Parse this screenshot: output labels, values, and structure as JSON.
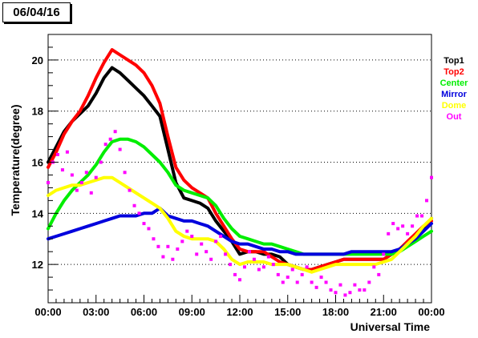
{
  "title": "06/04/16",
  "chart_data": {
    "type": "line",
    "xlabel": "Universal Time",
    "ylabel": "Temperature(degree)",
    "xlim": [
      0,
      24
    ],
    "ylim": [
      10.5,
      21
    ],
    "x_ticks": [
      "00:00",
      "03:00",
      "06:00",
      "09:00",
      "12:00",
      "15:00",
      "18:00",
      "21:00",
      "00:00"
    ],
    "y_ticks": [
      12,
      14,
      16,
      18,
      20
    ],
    "grid": "horizontal dotted",
    "legend_position": "right",
    "series": [
      {
        "name": "Top1",
        "color": "#000000",
        "x": [
          0,
          0.5,
          1,
          1.5,
          2,
          2.5,
          3,
          3.5,
          4,
          4.5,
          5,
          5.5,
          6,
          6.5,
          7,
          7.5,
          8,
          8.5,
          9,
          9.5,
          10,
          10.5,
          11,
          11.5,
          12,
          12.5,
          13,
          13.5,
          14,
          14.5,
          15,
          15.5,
          16,
          16.5,
          17,
          17.5,
          18,
          18.5,
          19,
          19.5,
          20,
          20.5,
          21,
          21.5,
          22,
          22.5,
          23,
          23.5,
          24
        ],
        "y": [
          16.0,
          16.6,
          17.2,
          17.6,
          17.9,
          18.2,
          18.7,
          19.3,
          19.7,
          19.5,
          19.2,
          18.9,
          18.6,
          18.2,
          17.8,
          16.5,
          15.2,
          14.6,
          14.5,
          14.4,
          14.2,
          13.7,
          13.3,
          12.9,
          12.4,
          12.5,
          12.5,
          12.4,
          12.4,
          12.3,
          12.0,
          11.9,
          11.8,
          11.8,
          11.9,
          12.0,
          12.1,
          12.2,
          12.2,
          12.2,
          12.2,
          12.2,
          12.2,
          12.4,
          12.6,
          12.8,
          13.1,
          13.4,
          13.8
        ]
      },
      {
        "name": "Top2",
        "color": "#ff0000",
        "x": [
          0,
          0.5,
          1,
          1.5,
          2,
          2.5,
          3,
          3.5,
          4,
          4.5,
          5,
          5.5,
          6,
          6.5,
          7,
          7.5,
          8,
          8.5,
          9,
          9.5,
          10,
          10.5,
          11,
          11.5,
          12,
          12.5,
          13,
          13.5,
          14,
          14.5,
          15,
          15.5,
          16,
          16.5,
          17,
          17.5,
          18,
          18.5,
          19,
          19.5,
          20,
          20.5,
          21,
          21.5,
          22,
          22.5,
          23,
          23.5,
          24
        ],
        "y": [
          15.8,
          16.4,
          17.1,
          17.6,
          18.0,
          18.6,
          19.3,
          19.9,
          20.4,
          20.2,
          20.0,
          19.8,
          19.5,
          19.0,
          18.3,
          17.0,
          15.8,
          15.3,
          15.0,
          14.8,
          14.6,
          14.0,
          13.5,
          13.0,
          12.6,
          12.5,
          12.5,
          12.5,
          12.3,
          12.1,
          12.0,
          11.9,
          11.8,
          11.8,
          11.9,
          12.0,
          12.1,
          12.2,
          12.2,
          12.2,
          12.2,
          12.2,
          12.2,
          12.4,
          12.6,
          12.9,
          13.2,
          13.5,
          13.7
        ]
      },
      {
        "name": "Center",
        "color": "#00ee00",
        "x": [
          0,
          0.5,
          1,
          1.5,
          2,
          2.5,
          3,
          3.5,
          4,
          4.5,
          5,
          5.5,
          6,
          6.5,
          7,
          7.5,
          8,
          8.5,
          9,
          9.5,
          10,
          10.5,
          11,
          11.5,
          12,
          12.5,
          13,
          13.5,
          14,
          14.5,
          15,
          15.5,
          16,
          16.5,
          17,
          17.5,
          18,
          18.5,
          19,
          19.5,
          20,
          20.5,
          21,
          21.5,
          22,
          22.5,
          23,
          23.5,
          24
        ],
        "y": [
          13.4,
          14.0,
          14.5,
          14.9,
          15.2,
          15.5,
          15.9,
          16.4,
          16.8,
          16.9,
          16.9,
          16.8,
          16.6,
          16.3,
          16.0,
          15.6,
          15.1,
          14.9,
          14.8,
          14.7,
          14.6,
          14.3,
          13.8,
          13.4,
          13.1,
          13.0,
          12.9,
          12.8,
          12.8,
          12.7,
          12.6,
          12.5,
          12.4,
          12.4,
          12.4,
          12.4,
          12.4,
          12.4,
          12.4,
          12.4,
          12.4,
          12.4,
          12.4,
          12.4,
          12.5,
          12.7,
          12.9,
          13.1,
          13.3
        ]
      },
      {
        "name": "Mirror",
        "color": "#0000dd",
        "x": [
          0,
          0.5,
          1,
          1.5,
          2,
          2.5,
          3,
          3.5,
          4,
          4.5,
          5,
          5.5,
          6,
          6.5,
          7,
          7.5,
          8,
          8.5,
          9,
          9.5,
          10,
          10.5,
          11,
          11.5,
          12,
          12.5,
          13,
          13.5,
          14,
          14.5,
          15,
          15.5,
          16,
          16.5,
          17,
          17.5,
          18,
          18.5,
          19,
          19.5,
          20,
          20.5,
          21,
          21.5,
          22,
          22.5,
          23,
          23.5,
          24
        ],
        "y": [
          13.0,
          13.1,
          13.2,
          13.3,
          13.4,
          13.5,
          13.6,
          13.7,
          13.8,
          13.9,
          13.9,
          13.9,
          14.0,
          14.0,
          14.2,
          13.9,
          13.8,
          13.7,
          13.7,
          13.6,
          13.5,
          13.3,
          13.1,
          12.9,
          12.8,
          12.8,
          12.7,
          12.6,
          12.6,
          12.5,
          12.5,
          12.4,
          12.4,
          12.4,
          12.4,
          12.4,
          12.4,
          12.4,
          12.5,
          12.5,
          12.5,
          12.5,
          12.5,
          12.5,
          12.6,
          12.8,
          13.0,
          13.3,
          13.6
        ]
      },
      {
        "name": "Dome",
        "color": "#ffff00",
        "x": [
          0,
          0.5,
          1,
          1.5,
          2,
          2.5,
          3,
          3.5,
          4,
          4.5,
          5,
          5.5,
          6,
          6.5,
          7,
          7.5,
          8,
          8.5,
          9,
          9.5,
          10,
          10.5,
          11,
          11.5,
          12,
          12.5,
          13,
          13.5,
          14,
          14.5,
          15,
          15.5,
          16,
          16.5,
          17,
          17.5,
          18,
          18.5,
          19,
          19.5,
          20,
          20.5,
          21,
          21.5,
          22,
          22.5,
          23,
          23.5,
          24
        ],
        "y": [
          14.7,
          14.9,
          15.0,
          15.1,
          15.1,
          15.2,
          15.3,
          15.4,
          15.4,
          15.2,
          15.0,
          14.8,
          14.6,
          14.4,
          14.2,
          13.8,
          13.3,
          13.1,
          13.0,
          13.0,
          13.0,
          12.9,
          12.6,
          12.2,
          12.0,
          12.1,
          12.1,
          12.1,
          12.0,
          12.0,
          12.0,
          11.9,
          11.8,
          11.7,
          11.8,
          11.9,
          12.0,
          12.0,
          12.0,
          12.0,
          12.0,
          12.0,
          12.1,
          12.2,
          12.5,
          12.8,
          13.1,
          13.5,
          13.8
        ]
      },
      {
        "name": "Out",
        "color": "#ff00ff",
        "x": [
          0,
          0.3,
          0.6,
          0.9,
          1.2,
          1.5,
          1.8,
          2.1,
          2.4,
          2.7,
          3.0,
          3.3,
          3.6,
          3.9,
          4.2,
          4.5,
          4.8,
          5.1,
          5.4,
          5.7,
          6.0,
          6.3,
          6.6,
          6.9,
          7.2,
          7.5,
          7.8,
          8.1,
          8.4,
          8.7,
          9.0,
          9.3,
          9.6,
          9.9,
          10.2,
          10.5,
          10.8,
          11.1,
          11.4,
          11.7,
          12.0,
          12.3,
          12.6,
          12.9,
          13.2,
          13.5,
          13.8,
          14.1,
          14.4,
          14.7,
          15.0,
          15.3,
          15.6,
          15.9,
          16.2,
          16.5,
          16.8,
          17.1,
          17.4,
          17.7,
          18.0,
          18.3,
          18.6,
          18.9,
          19.2,
          19.5,
          19.8,
          20.1,
          20.4,
          20.7,
          21.0,
          21.3,
          21.6,
          21.9,
          22.2,
          22.5,
          22.8,
          23.1,
          23.4,
          23.7,
          24.0
        ],
        "y": [
          15.2,
          16.0,
          16.3,
          15.7,
          16.4,
          15.5,
          14.9,
          15.2,
          15.6,
          14.8,
          15.4,
          16.0,
          16.7,
          16.9,
          17.2,
          16.5,
          15.6,
          14.9,
          14.3,
          14.0,
          13.6,
          13.4,
          13.0,
          12.7,
          12.3,
          12.7,
          12.2,
          12.6,
          12.9,
          13.3,
          13.1,
          12.4,
          12.8,
          12.5,
          12.2,
          12.9,
          13.1,
          12.4,
          12.0,
          11.6,
          11.4,
          11.9,
          12.5,
          12.2,
          11.8,
          11.9,
          12.3,
          12.0,
          11.6,
          11.3,
          11.5,
          11.8,
          11.3,
          11.6,
          11.9,
          11.3,
          11.1,
          11.5,
          11.3,
          11.0,
          10.9,
          11.2,
          10.8,
          10.9,
          11.2,
          11.0,
          11.0,
          11.3,
          11.9,
          11.6,
          12.4,
          13.2,
          13.6,
          13.4,
          13.5,
          13.2,
          13.5,
          13.9,
          13.9,
          14.5,
          15.4
        ]
      }
    ]
  }
}
